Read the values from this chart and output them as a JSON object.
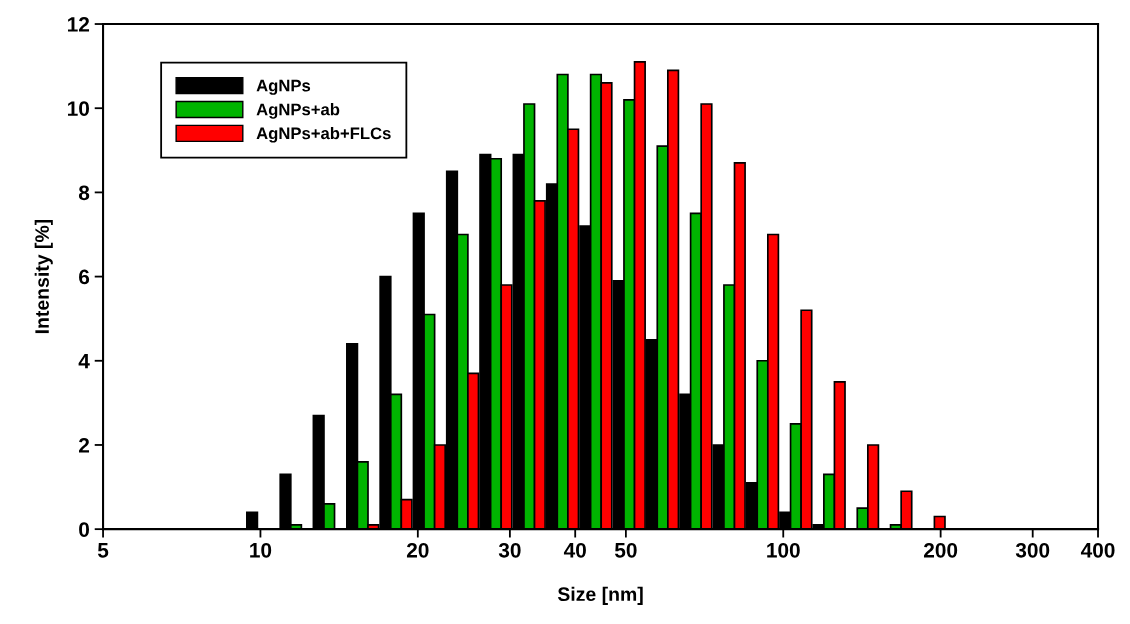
{
  "chart_data": {
    "type": "bar",
    "xlabel": "Size [nm]",
    "ylabel": "Intensity [%]",
    "log": "x",
    "x": [
      10.1,
      11.7,
      13.54,
      15.69,
      18.17,
      21.04,
      24.36,
      28.21,
      32.67,
      37.84,
      43.82,
      50.75,
      58.77,
      68.06,
      78.82,
      91.28,
      105.7,
      122.4,
      141.8,
      164.2,
      190.1
    ],
    "series": [
      {
        "name": "AgNPs",
        "color": "#000000",
        "values": [
          0.4,
          1.3,
          2.7,
          4.4,
          6.0,
          7.5,
          8.5,
          8.9,
          8.9,
          8.2,
          7.2,
          5.9,
          4.5,
          3.2,
          2.0,
          1.1,
          0.4,
          0.1,
          null,
          null,
          null
        ]
      },
      {
        "name": "AgNPs+ab",
        "color": "#00b400",
        "values": [
          null,
          0.1,
          0.6,
          1.6,
          3.2,
          5.1,
          7.0,
          8.8,
          10.1,
          10.8,
          10.8,
          10.2,
          9.1,
          7.5,
          5.8,
          4.0,
          2.5,
          1.3,
          0.5,
          0.1,
          null
        ]
      },
      {
        "name": "AgNPs+ab+FLCs",
        "color": "#ff0000",
        "values": [
          null,
          null,
          null,
          0.1,
          0.7,
          2.0,
          3.7,
          5.8,
          7.8,
          9.5,
          10.6,
          11.1,
          10.9,
          10.1,
          8.7,
          7.0,
          5.2,
          3.5,
          2.0,
          0.9,
          0.3
        ]
      }
    ],
    "xlim": [
      5,
      400
    ],
    "xticks": [
      5,
      10,
      20,
      30,
      40,
      50,
      100,
      200,
      300,
      400
    ],
    "ylim": [
      0,
      12
    ],
    "yticks": [
      0,
      2,
      4,
      6,
      8,
      10,
      12
    ],
    "grid": false,
    "legend": "top left"
  }
}
